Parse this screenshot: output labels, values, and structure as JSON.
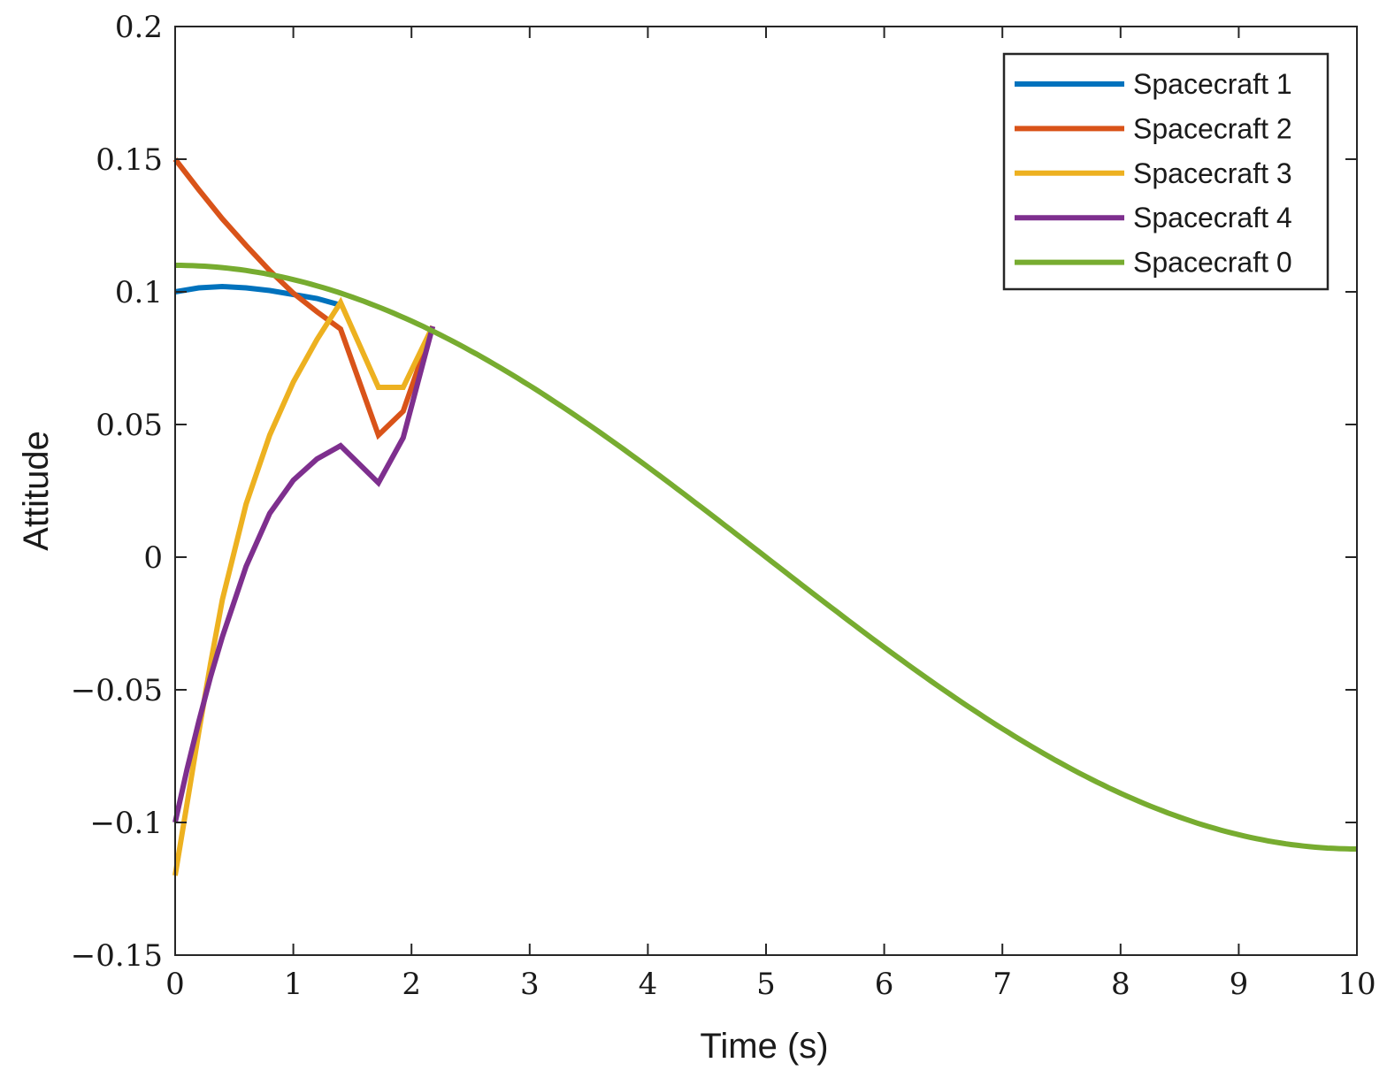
{
  "chart_data": {
    "type": "line",
    "title": "",
    "xlabel": "Time (s)",
    "ylabel": "Attitude",
    "xlim": [
      0,
      10
    ],
    "ylim": [
      -0.15,
      0.2
    ],
    "xticks": [
      0,
      1,
      2,
      3,
      4,
      5,
      6,
      7,
      8,
      9,
      10
    ],
    "xtick_labels": [
      "0",
      "1",
      "2",
      "3",
      "4",
      "5",
      "6",
      "7",
      "8",
      "9",
      "10"
    ],
    "yticks": [
      -0.15,
      -0.1,
      -0.05,
      0,
      0.05,
      0.1,
      0.15,
      0.2
    ],
    "ytick_labels": [
      "−0.15",
      "−0.1",
      "−0.05",
      "0",
      "0.05",
      "0.1",
      "0.15",
      "0.2"
    ],
    "grid": false,
    "legend_position": "top-right",
    "series": [
      {
        "name": "Spacecraft 1",
        "color": "#0072BD",
        "x": [
          0,
          0.2,
          0.4,
          0.6,
          0.8,
          1.0,
          1.2,
          1.4
        ],
        "y": [
          0.1,
          0.1015,
          0.102,
          0.1015,
          0.1005,
          0.099,
          0.0975,
          0.095
        ]
      },
      {
        "name": "Spacecraft 2",
        "color": "#D95319",
        "x": [
          0,
          0.2,
          0.4,
          0.6,
          0.8,
          1.0,
          1.2,
          1.4,
          1.72,
          1.93,
          2.18
        ],
        "y": [
          0.15,
          0.1385,
          0.1275,
          0.1175,
          0.108,
          0.0995,
          0.0925,
          0.086,
          0.046,
          0.055,
          0.087
        ]
      },
      {
        "name": "Spacecraft 3",
        "color": "#EDB120",
        "x": [
          0,
          0.1,
          0.2,
          0.3,
          0.4,
          0.6,
          0.8,
          1.0,
          1.2,
          1.4,
          1.72,
          1.93,
          2.18
        ],
        "y": [
          -0.12,
          -0.093,
          -0.066,
          -0.04,
          -0.016,
          0.02,
          0.046,
          0.066,
          0.082,
          0.096,
          0.064,
          0.064,
          0.087
        ]
      },
      {
        "name": "Spacecraft 4",
        "color": "#7E2F8E",
        "x": [
          0,
          0.1,
          0.2,
          0.3,
          0.4,
          0.6,
          0.8,
          1.0,
          1.2,
          1.4,
          1.72,
          1.93,
          2.18
        ],
        "y": [
          -0.1,
          -0.08,
          -0.062,
          -0.045,
          -0.03,
          -0.0035,
          0.0165,
          0.029,
          0.037,
          0.042,
          0.028,
          0.045,
          0.087
        ]
      },
      {
        "name": "Spacecraft 0",
        "color": "#77AC30",
        "function": "0.11*cos(pi*t/10)",
        "x": [
          0,
          0.5,
          1,
          1.5,
          2,
          2.5,
          3,
          3.5,
          4,
          4.5,
          5,
          5.5,
          6,
          6.5,
          7,
          7.5,
          8,
          8.5,
          9,
          9.5,
          10
        ],
        "y": [
          0.11,
          0.1086,
          0.1046,
          0.098,
          0.089,
          0.0778,
          0.0647,
          0.0499,
          0.034,
          0.0172,
          0.0,
          -0.0172,
          -0.034,
          -0.0499,
          -0.0647,
          -0.0778,
          -0.089,
          -0.098,
          -0.1046,
          -0.1086,
          -0.11
        ]
      }
    ]
  }
}
